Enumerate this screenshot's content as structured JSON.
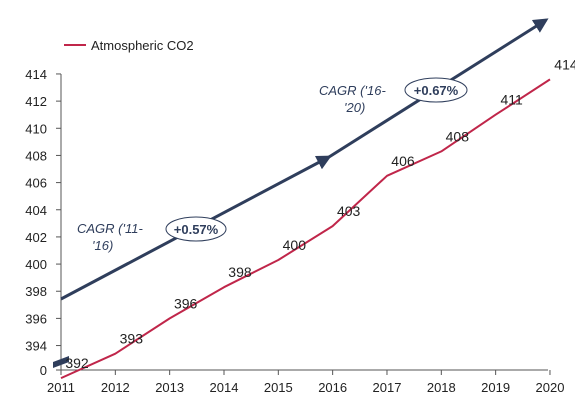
{
  "chart_data": {
    "type": "line",
    "title": "",
    "xlabel": "",
    "ylabel": "",
    "x": [
      "2011",
      "2012",
      "2013",
      "2014",
      "2015",
      "2016",
      "2017",
      "2018",
      "2019",
      "2020"
    ],
    "series": [
      {
        "name": "Atmospheric CO2",
        "values": [
          391.6,
          393.4,
          396.0,
          398.3,
          400.3,
          402.8,
          406.5,
          408.3,
          411.0,
          413.6
        ],
        "color": "#c0264a"
      }
    ],
    "data_labels": [
      "392",
      "393",
      "396",
      "398",
      "400",
      "403",
      "406",
      "408",
      "411",
      "414"
    ],
    "y_ticks": [
      "0",
      "394",
      "396",
      "398",
      "400",
      "402",
      "404",
      "406",
      "408",
      "410",
      "412",
      "414"
    ],
    "ylim": [
      392.2,
      414
    ],
    "axis_break": true,
    "legend_position": "top-left",
    "grid": false,
    "trend_arrows": [
      {
        "from_year": "2011",
        "to_year": "2016",
        "color": "#2f3e5c"
      },
      {
        "from_year": "2016",
        "to_year": "2020",
        "color": "#2f3e5c"
      }
    ],
    "annotations": [
      {
        "line1": "CAGR ('11-",
        "line2": "'16)",
        "value": "+0.57%"
      },
      {
        "line1": "CAGR ('16-",
        "line2": "'20)",
        "value": "+0.67%"
      }
    ]
  }
}
